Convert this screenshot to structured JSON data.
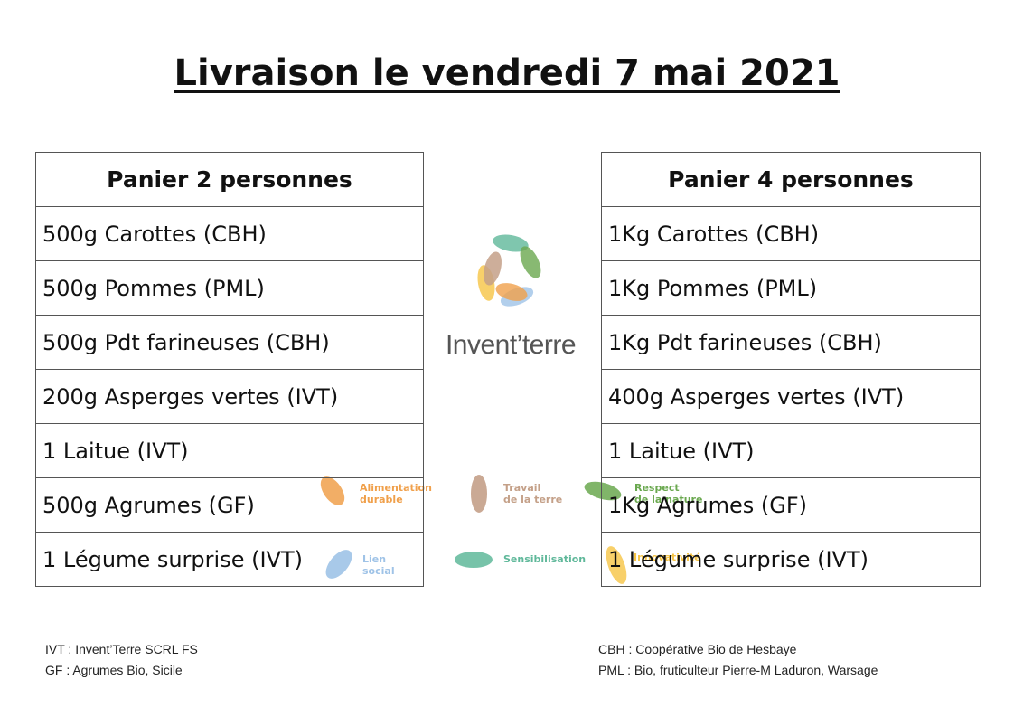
{
  "title": "Livraison le vendredi 7 mai 2021",
  "basket_2": {
    "header": "Panier 2 personnes",
    "items": [
      "500g Carottes (CBH)",
      "500g Pommes (PML)",
      "500g Pdt farineuses (CBH)",
      "200g Asperges vertes (IVT)",
      "1 Laitue (IVT)",
      "500g Agrumes (GF)",
      "1 Légume surprise (IVT)"
    ]
  },
  "basket_4": {
    "header": "Panier 4 personnes",
    "items": [
      "1Kg Carottes (CBH)",
      "1Kg Pommes (PML)",
      "1Kg Pdt farineuses (CBH)",
      "400g Asperges vertes (IVT)",
      "1 Laitue (IVT)",
      "1Kg Agrumes (GF)",
      "1 Légume surprise (IVT)"
    ]
  },
  "logo": {
    "text": "Invent’terre"
  },
  "values": [
    {
      "label": "Alimentation\ndurable",
      "color": "#f0a04b"
    },
    {
      "label": "Travail\nde la terre",
      "color": "#c4a088"
    },
    {
      "label": "Respect\nde la nature",
      "color": "#6aa84f"
    },
    {
      "label": "Lien\nsocial",
      "color": "#9fc3e7"
    },
    {
      "label": "Sensibilisation",
      "color": "#5fb89a"
    },
    {
      "label": "Innovativité",
      "color": "#f6c445"
    }
  ],
  "legend_left": [
    "IVT : Invent’Terre SCRL FS",
    "GF : Agrumes Bio, Sicile"
  ],
  "legend_right": [
    "CBH : Coopérative Bio de Hesbaye",
    "PML : Bio, fruticulteur Pierre-M Laduron, Warsage"
  ]
}
